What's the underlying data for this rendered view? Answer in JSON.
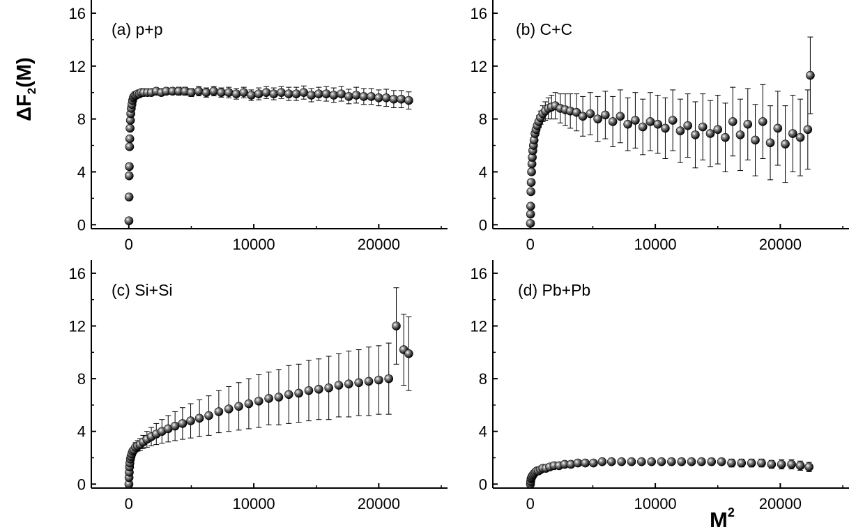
{
  "figure": {
    "ylabel_main": "ΔF",
    "ylabel_sub": "2",
    "ylabel_tail": "(M)",
    "xlabel_main": "M",
    "xlabel_sup": "2"
  },
  "chart_data": [
    {
      "type": "scatter",
      "panel": "(a)  p+p",
      "xlim": [
        -3000,
        25500
      ],
      "ylim": [
        -0.3,
        17
      ],
      "xticks": [
        0,
        10000,
        20000
      ],
      "yticks": [
        0,
        4,
        8,
        12,
        16
      ],
      "xlabel": "M²",
      "ylabel": "ΔF₂(M)",
      "series": [
        {
          "x": [
            10,
            20,
            30,
            40,
            60,
            80,
            100,
            130,
            160,
            200,
            250,
            300,
            360,
            420,
            500,
            600,
            700,
            850,
            1000,
            1200,
            1500,
            1800,
            2200,
            2600,
            3000,
            3500,
            4000,
            4500,
            5000,
            5600,
            6200,
            6800,
            7400,
            8000,
            8600,
            9200,
            9800,
            10400,
            11000,
            11600,
            12200,
            12800,
            13400,
            14000,
            14600,
            15200,
            15800,
            16400,
            17000,
            17600,
            18200,
            18800,
            19400,
            20000,
            20600,
            21200,
            21800,
            22400
          ],
          "y": [
            0.3,
            2.1,
            3.7,
            4.4,
            5.9,
            6.5,
            7.3,
            7.9,
            8.4,
            8.8,
            9.1,
            9.4,
            9.6,
            9.7,
            9.8,
            9.8,
            9.9,
            9.9,
            10.0,
            10.0,
            10.0,
            10.0,
            10.1,
            10.0,
            10.1,
            10.1,
            10.1,
            10.1,
            10.0,
            10.1,
            10.0,
            10.1,
            10.0,
            10.0,
            9.9,
            10.0,
            9.8,
            9.9,
            10.0,
            9.9,
            10.0,
            9.9,
            9.9,
            10.0,
            9.8,
            9.9,
            9.9,
            9.8,
            9.9,
            9.7,
            9.8,
            9.7,
            9.7,
            9.6,
            9.6,
            9.5,
            9.5,
            9.4
          ],
          "err": [
            0,
            0,
            0,
            0,
            0,
            0,
            0,
            0,
            0,
            0,
            0,
            0,
            0,
            0,
            0,
            0.1,
            0.1,
            0.15,
            0.15,
            0.15,
            0.15,
            0.2,
            0.2,
            0.25,
            0.25,
            0.25,
            0.3,
            0.3,
            0.3,
            0.35,
            0.35,
            0.35,
            0.35,
            0.4,
            0.4,
            0.4,
            0.4,
            0.45,
            0.45,
            0.45,
            0.45,
            0.5,
            0.5,
            0.5,
            0.5,
            0.5,
            0.55,
            0.55,
            0.55,
            0.55,
            0.6,
            0.6,
            0.6,
            0.6,
            0.65,
            0.65,
            0.65,
            0.65
          ]
        }
      ]
    },
    {
      "type": "scatter",
      "panel": "(b) C+C",
      "xlim": [
        -3000,
        25500
      ],
      "ylim": [
        -0.3,
        17
      ],
      "xticks": [
        0,
        10000,
        20000
      ],
      "yticks": [
        0,
        4,
        8,
        12,
        16
      ],
      "xlabel": "M²",
      "ylabel": "ΔF₂(M)",
      "series": [
        {
          "x": [
            10,
            20,
            30,
            50,
            70,
            100,
            130,
            160,
            200,
            250,
            300,
            380,
            460,
            560,
            680,
            820,
            1000,
            1200,
            1450,
            1700,
            2000,
            2400,
            2800,
            3200,
            3700,
            4200,
            4800,
            5400,
            6000,
            6600,
            7200,
            7800,
            8400,
            9000,
            9600,
            10200,
            10800,
            11400,
            12000,
            12600,
            13200,
            13800,
            14400,
            15000,
            15600,
            16200,
            16800,
            17400,
            18000,
            18600,
            19200,
            19800,
            20400,
            21000,
            21600,
            22200,
            22400
          ],
          "y": [
            0.1,
            0.8,
            1.4,
            2.5,
            3.2,
            4.0,
            4.6,
            5.1,
            5.6,
            6.0,
            6.4,
            6.9,
            7.2,
            7.5,
            7.8,
            8.1,
            8.4,
            8.6,
            8.8,
            8.9,
            9.0,
            8.8,
            8.7,
            8.6,
            8.5,
            8.2,
            8.4,
            8.0,
            8.3,
            7.8,
            8.2,
            7.6,
            7.9,
            7.4,
            7.8,
            7.6,
            7.3,
            7.9,
            7.1,
            7.5,
            6.8,
            7.4,
            6.9,
            7.2,
            6.6,
            7.8,
            6.8,
            7.6,
            6.4,
            7.8,
            6.2,
            7.3,
            6.1,
            6.9,
            6.6,
            7.2,
            11.3
          ],
          "err": [
            0,
            0,
            0,
            0,
            0,
            0.1,
            0.1,
            0.15,
            0.2,
            0.2,
            0.25,
            0.3,
            0.35,
            0.4,
            0.45,
            0.5,
            0.6,
            0.7,
            0.8,
            0.9,
            1.0,
            1.1,
            1.2,
            1.3,
            1.4,
            1.5,
            1.6,
            1.7,
            1.8,
            1.9,
            2.0,
            2.0,
            2.1,
            2.1,
            2.2,
            2.2,
            2.3,
            2.3,
            2.4,
            2.4,
            2.5,
            2.5,
            2.5,
            2.6,
            2.6,
            2.6,
            2.7,
            2.7,
            2.7,
            2.8,
            2.8,
            2.8,
            2.9,
            2.9,
            2.9,
            3.0,
            2.9
          ]
        }
      ]
    },
    {
      "type": "scatter",
      "panel": "(c) Si+Si",
      "xlim": [
        -3000,
        25500
      ],
      "ylim": [
        -0.3,
        17
      ],
      "xticks": [
        0,
        10000,
        20000
      ],
      "yticks": [
        0,
        4,
        8,
        12,
        16
      ],
      "xlabel": "M²",
      "ylabel": "ΔF₂(M)",
      "series": [
        {
          "x": [
            10,
            20,
            40,
            60,
            90,
            130,
            180,
            240,
            320,
            420,
            540,
            700,
            900,
            1150,
            1450,
            1800,
            2200,
            2650,
            3150,
            3700,
            4300,
            4950,
            5650,
            6400,
            7200,
            8000,
            8800,
            9600,
            10400,
            11200,
            12000,
            12800,
            13600,
            14400,
            15200,
            16000,
            16800,
            17600,
            18400,
            19200,
            20000,
            20800,
            21400,
            22000,
            22400
          ],
          "y": [
            0.0,
            0.5,
            0.9,
            1.3,
            1.6,
            1.9,
            2.1,
            2.3,
            2.5,
            2.6,
            2.8,
            2.9,
            3.0,
            3.2,
            3.4,
            3.6,
            3.8,
            4.0,
            4.2,
            4.4,
            4.6,
            4.8,
            5.0,
            5.2,
            5.5,
            5.7,
            5.9,
            6.1,
            6.3,
            6.5,
            6.6,
            6.8,
            6.9,
            7.1,
            7.2,
            7.3,
            7.5,
            7.6,
            7.7,
            7.8,
            7.9,
            8.0,
            12.0,
            10.2,
            9.9
          ],
          "err": [
            0,
            0,
            0,
            0,
            0,
            0.1,
            0.15,
            0.2,
            0.25,
            0.3,
            0.35,
            0.4,
            0.45,
            0.5,
            0.6,
            0.7,
            0.8,
            0.9,
            1.0,
            1.1,
            1.2,
            1.3,
            1.4,
            1.5,
            1.6,
            1.7,
            1.8,
            1.9,
            2.0,
            2.0,
            2.1,
            2.2,
            2.2,
            2.3,
            2.3,
            2.4,
            2.4,
            2.5,
            2.5,
            2.6,
            2.6,
            2.7,
            2.9,
            2.7,
            2.8
          ]
        }
      ]
    },
    {
      "type": "scatter",
      "panel": "(d) Pb+Pb",
      "xlim": [
        -3000,
        25500
      ],
      "ylim": [
        -0.3,
        17
      ],
      "xticks": [
        0,
        10000,
        20000
      ],
      "yticks": [
        0,
        4,
        8,
        12,
        16
      ],
      "xlabel": "M²",
      "ylabel": "ΔF₂(M)",
      "series": [
        {
          "x": [
            10,
            30,
            60,
            100,
            150,
            220,
            300,
            400,
            520,
            660,
            820,
            1000,
            1250,
            1550,
            1900,
            2300,
            2750,
            3250,
            3800,
            4400,
            5050,
            5750,
            6500,
            7300,
            8100,
            8900,
            9700,
            10500,
            11300,
            12100,
            12900,
            13700,
            14500,
            15300,
            16100,
            16900,
            17700,
            18500,
            19300,
            20100,
            20900,
            21600,
            22300
          ],
          "y": [
            0.0,
            0.2,
            0.4,
            0.5,
            0.6,
            0.7,
            0.8,
            0.9,
            1.0,
            1.0,
            1.1,
            1.2,
            1.2,
            1.3,
            1.4,
            1.4,
            1.5,
            1.5,
            1.6,
            1.6,
            1.6,
            1.7,
            1.7,
            1.7,
            1.7,
            1.7,
            1.7,
            1.7,
            1.7,
            1.7,
            1.7,
            1.7,
            1.7,
            1.7,
            1.6,
            1.6,
            1.6,
            1.6,
            1.5,
            1.5,
            1.5,
            1.4,
            1.3
          ],
          "err": [
            0,
            0,
            0,
            0,
            0,
            0,
            0,
            0,
            0,
            0.05,
            0.05,
            0.05,
            0.05,
            0.1,
            0.1,
            0.1,
            0.1,
            0.1,
            0.15,
            0.15,
            0.15,
            0.15,
            0.15,
            0.2,
            0.2,
            0.2,
            0.2,
            0.2,
            0.2,
            0.25,
            0.25,
            0.25,
            0.25,
            0.25,
            0.3,
            0.3,
            0.3,
            0.3,
            0.3,
            0.35,
            0.35,
            0.35,
            0.35
          ]
        }
      ]
    }
  ]
}
